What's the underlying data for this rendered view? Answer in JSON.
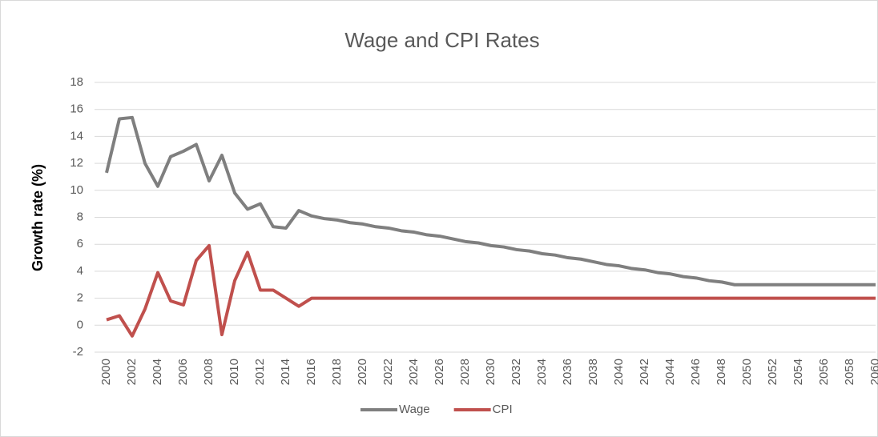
{
  "chart_data": {
    "type": "line",
    "title": "Wage and CPI Rates",
    "y_label": "Growth rate (%)",
    "x": [
      2000,
      2001,
      2002,
      2003,
      2004,
      2005,
      2006,
      2007,
      2008,
      2009,
      2010,
      2011,
      2012,
      2013,
      2014,
      2015,
      2016,
      2017,
      2018,
      2019,
      2020,
      2021,
      2022,
      2023,
      2024,
      2025,
      2026,
      2027,
      2028,
      2029,
      2030,
      2031,
      2032,
      2033,
      2034,
      2035,
      2036,
      2037,
      2038,
      2039,
      2040,
      2041,
      2042,
      2043,
      2044,
      2045,
      2046,
      2047,
      2048,
      2049,
      2050,
      2051,
      2052,
      2053,
      2054,
      2055,
      2056,
      2057,
      2058,
      2059,
      2060
    ],
    "series": [
      {
        "name": "Wage",
        "color": "#7f7f7f",
        "values": [
          11.3,
          15.3,
          15.4,
          12,
          10.3,
          12.5,
          12.9,
          13.4,
          10.7,
          12.6,
          9.8,
          8.6,
          9,
          7.3,
          7.2,
          8.5,
          8.1,
          7.9,
          7.8,
          7.6,
          7.5,
          7.3,
          7.2,
          7.0,
          6.9,
          6.7,
          6.6,
          6.4,
          6.2,
          6.1,
          5.9,
          5.8,
          5.6,
          5.5,
          5.3,
          5.2,
          5.0,
          4.9,
          4.7,
          4.5,
          4.4,
          4.2,
          4.1,
          3.9,
          3.8,
          3.6,
          3.5,
          3.3,
          3.2,
          3.0,
          3.0,
          3.0,
          3.0,
          3.0,
          3.0,
          3.0,
          3.0,
          3.0,
          3.0,
          3.0,
          3.0
        ]
      },
      {
        "name": "CPI",
        "color": "#c0504d",
        "values": [
          0.4,
          0.7,
          -0.8,
          1.2,
          3.9,
          1.8,
          1.5,
          4.8,
          5.9,
          -0.7,
          3.3,
          5.4,
          2.6,
          2.6,
          2.0,
          1.4,
          2,
          2,
          2,
          2,
          2,
          2,
          2,
          2,
          2,
          2,
          2,
          2,
          2,
          2,
          2,
          2,
          2,
          2,
          2,
          2,
          2,
          2,
          2,
          2,
          2,
          2,
          2,
          2,
          2,
          2,
          2,
          2,
          2,
          2,
          2,
          2,
          2,
          2,
          2,
          2,
          2,
          2,
          2,
          2,
          2
        ]
      }
    ],
    "xlim": [
      2000,
      2060
    ],
    "xticks": [
      2000,
      2002,
      2004,
      2006,
      2008,
      2010,
      2012,
      2014,
      2016,
      2018,
      2020,
      2022,
      2024,
      2026,
      2028,
      2030,
      2032,
      2034,
      2036,
      2038,
      2040,
      2042,
      2044,
      2046,
      2048,
      2050,
      2052,
      2054,
      2056,
      2058,
      2060
    ],
    "ylim": [
      -2,
      18
    ],
    "yticks": [
      -2,
      0,
      2,
      4,
      6,
      8,
      10,
      12,
      14,
      16,
      18
    ],
    "grid": true,
    "legend": "bottom"
  }
}
